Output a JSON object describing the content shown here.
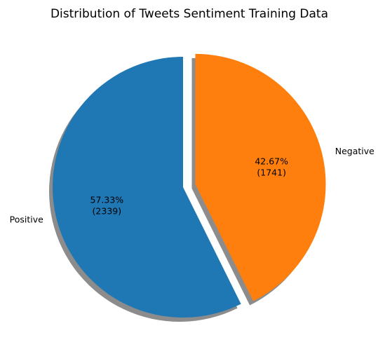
{
  "chart_data": {
    "type": "pie",
    "title": "Distribution of Tweets Sentiment Training Data",
    "slices": [
      {
        "label": "Positive",
        "value": 2339,
        "percent_label": "57.33%",
        "count_label": "(2339)",
        "color": "#1f77b4",
        "exploded": false
      },
      {
        "label": "Negative",
        "value": 1741,
        "percent_label": "42.67%",
        "count_label": "(1741)",
        "color": "#ff7f0e",
        "exploded": true
      }
    ],
    "start_angle_deg": 90,
    "direction": "counterclockwise",
    "shadow": true
  }
}
